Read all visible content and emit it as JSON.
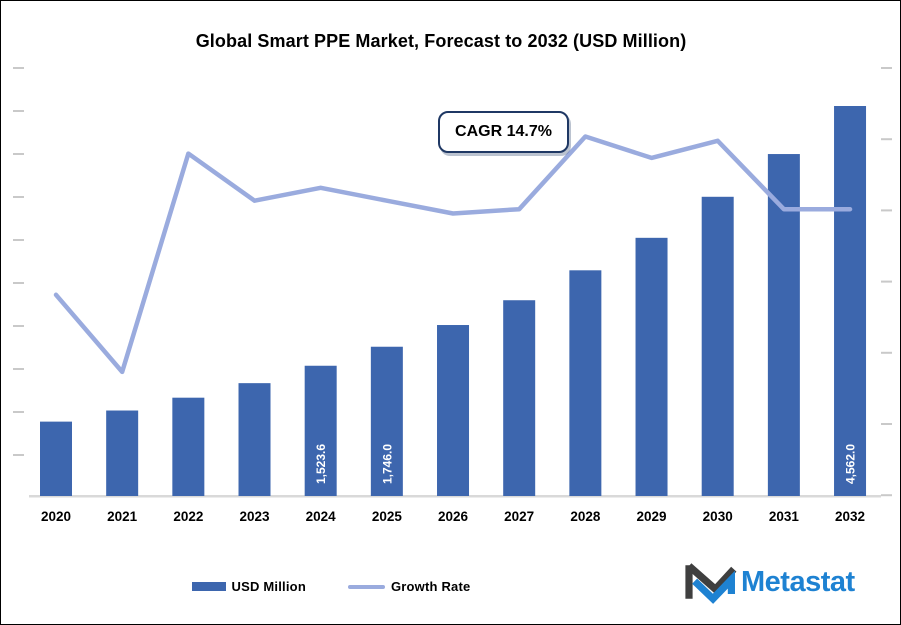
{
  "title": "Global Smart PPE Market, Forecast to 2032 (USD Million)",
  "annotation": {
    "cagr_label": "CAGR 14.7%"
  },
  "legend": {
    "bar_label": "USD Million",
    "line_label": "Growth Rate"
  },
  "logo": {
    "wordmark": "Metastat"
  },
  "colors": {
    "bar": "#3D66AE",
    "line": "#9AABDE",
    "bar_label_text": "#ffffff",
    "axis_line": "#D9D9D9",
    "tick": "#C9C9C9",
    "cagr_border": "#1F3864",
    "logo_dark": "#3F3F3F",
    "logo_blue": "#1E82D2",
    "text": "#000000"
  },
  "chart_data": {
    "type": "bar",
    "combo": "bar+line",
    "title": "Global Smart PPE Market, Forecast to 2032 (USD Million)",
    "categories": [
      "2020",
      "2021",
      "2022",
      "2023",
      "2024",
      "2025",
      "2026",
      "2027",
      "2028",
      "2029",
      "2030",
      "2031",
      "2032"
    ],
    "series": [
      {
        "name": "USD Million",
        "type": "bar",
        "values": [
          870,
          1000,
          1150,
          1320,
          1523.6,
          1746.0,
          2000,
          2290,
          2640,
          3020,
          3500,
          4000,
          4562.0
        ],
        "printed_value_labels": [
          "",
          "",
          "",
          "",
          "1,523.6",
          "1,746.0",
          "",
          "",
          "",
          "",
          "",
          "",
          "4,562.0"
        ]
      },
      {
        "name": "Growth Rate",
        "type": "line",
        "values_norm": [
          0.47,
          0.29,
          0.8,
          0.69,
          0.72,
          0.69,
          0.66,
          0.67,
          0.84,
          0.79,
          0.83,
          0.67,
          0.67
        ],
        "note": "secondary axis tick labels are illegible in source; values are normalized plot heights"
      }
    ],
    "annotations": [
      "CAGR 14.7%"
    ],
    "xlabel": "",
    "ylabel": "",
    "ylim": [
      0,
      4700
    ],
    "gridlines": false,
    "legend_position": "bottom",
    "axis_ticks": {
      "left_count": 10,
      "right_count": 7,
      "tick_labels_visible": false
    }
  }
}
